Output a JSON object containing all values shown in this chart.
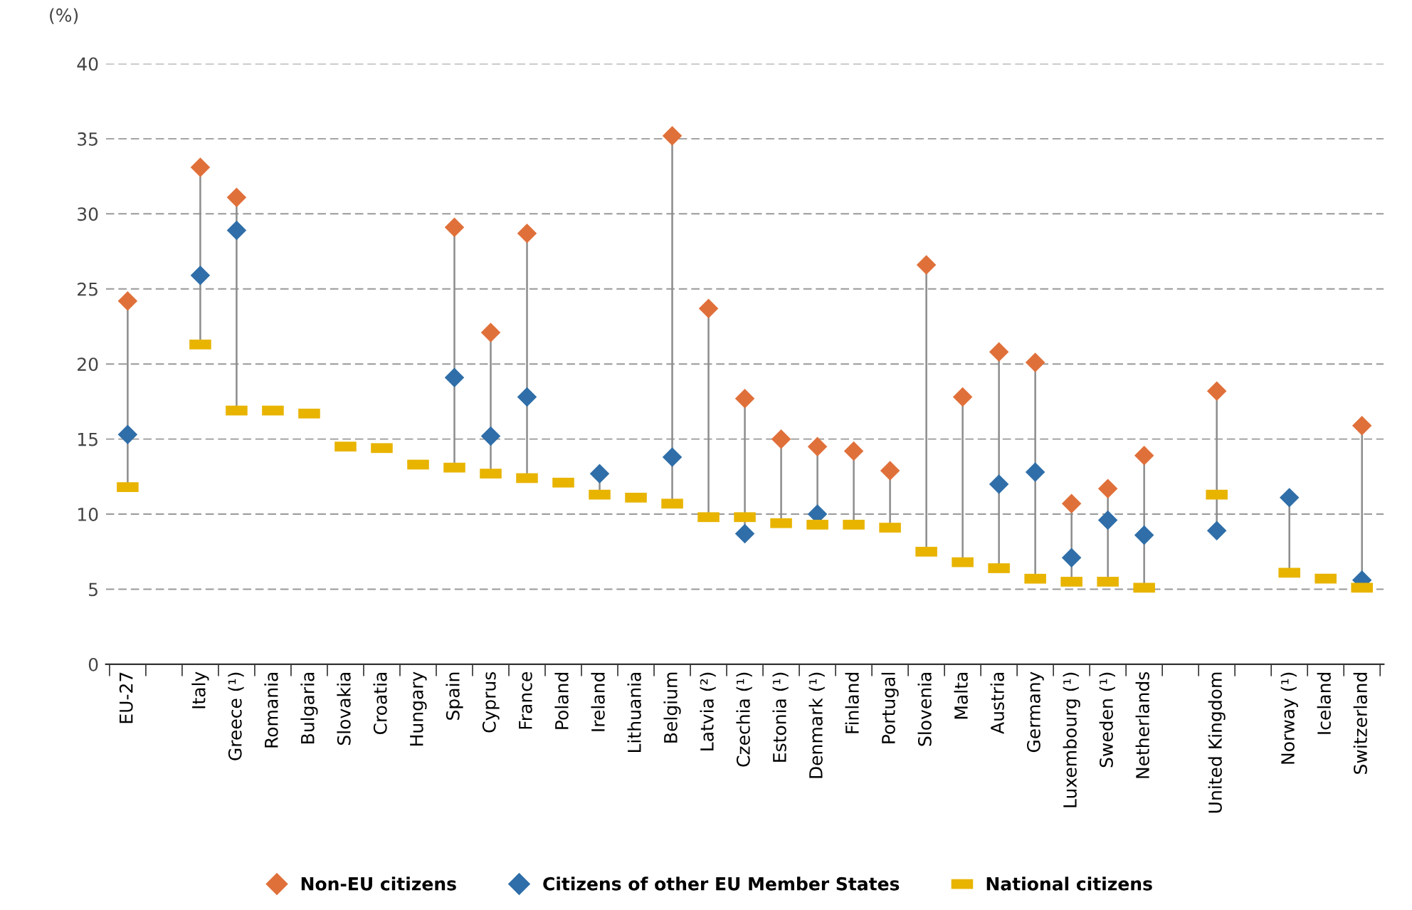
{
  "chart_data": {
    "type": "scatter",
    "ylabel": "(%)",
    "categories": [
      "EU-27",
      null,
      "Italy",
      "Greece (¹)",
      "Romania",
      "Bulgaria",
      "Slovakia",
      "Croatia",
      "Hungary",
      "Spain",
      "Cyprus",
      "France",
      "Poland",
      "Ireland",
      "Lithuania",
      "Belgium",
      "Latvia (²)",
      "Czechia (¹)",
      "Estonia (¹)",
      "Denmark (¹)",
      "Finland",
      "Portugal",
      "Slovenia",
      "Malta",
      "Austria",
      "Germany",
      "Luxembourg (¹)",
      "Sweden (¹)",
      "Netherlands",
      null,
      "United Kingdom",
      null,
      "Norway (¹)",
      "Iceland",
      "Switzerland"
    ],
    "series": [
      {
        "name": "Non-EU citizens",
        "color": "#e0703a",
        "marker": "diamond",
        "values": [
          24.2,
          null,
          33.1,
          31.1,
          null,
          null,
          null,
          null,
          null,
          29.1,
          22.1,
          28.7,
          null,
          null,
          null,
          35.2,
          23.7,
          17.7,
          15.0,
          14.5,
          14.2,
          12.9,
          26.6,
          17.8,
          20.8,
          20.1,
          10.7,
          11.7,
          13.9,
          null,
          18.2,
          null,
          null,
          null,
          15.9
        ]
      },
      {
        "name": "Citizens of other EU Member States",
        "color": "#2f6ea8",
        "marker": "diamond",
        "values": [
          15.3,
          null,
          25.9,
          28.9,
          null,
          null,
          null,
          null,
          null,
          19.1,
          15.2,
          17.8,
          null,
          12.7,
          null,
          13.8,
          null,
          8.7,
          null,
          10.0,
          null,
          null,
          null,
          null,
          12.0,
          12.8,
          7.1,
          9.6,
          8.6,
          null,
          8.9,
          null,
          11.1,
          null,
          5.6
        ]
      },
      {
        "name": "National citizens",
        "color": "#e8b400",
        "marker": "square",
        "values": [
          11.8,
          null,
          21.3,
          16.9,
          16.9,
          16.7,
          14.5,
          14.4,
          13.3,
          13.1,
          12.7,
          12.4,
          12.1,
          11.3,
          11.1,
          10.7,
          9.8,
          9.8,
          9.4,
          9.3,
          9.3,
          9.1,
          7.5,
          6.8,
          6.4,
          5.7,
          5.5,
          5.5,
          5.1,
          null,
          11.3,
          null,
          6.1,
          5.7,
          5.1
        ]
      }
    ],
    "ylim": [
      0,
      40
    ],
    "yticks": [
      0,
      5,
      10,
      15,
      20,
      25,
      30,
      35,
      40
    ],
    "grid": "y",
    "legend": "bottom"
  }
}
